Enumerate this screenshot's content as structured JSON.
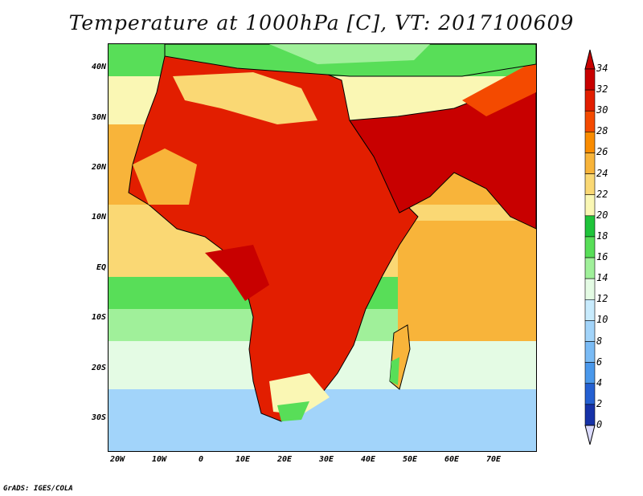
{
  "title": "Temperature at 1000hPa [C], VT: 2017100609",
  "credit": "GrADS: IGES/COLA",
  "lat_labels": [
    "40N",
    "30N",
    "20N",
    "10N",
    "EQ",
    "10S",
    "20S",
    "30S"
  ],
  "lon_labels": [
    "20W",
    "10W",
    "0",
    "10E",
    "20E",
    "30E",
    "40E",
    "50E",
    "60E",
    "70E"
  ],
  "colorbar": {
    "labels": [
      "34",
      "32",
      "30",
      "28",
      "26",
      "24",
      "22",
      "20",
      "18",
      "16",
      "14",
      "12",
      "10",
      "8",
      "6",
      "4",
      "2",
      "0"
    ],
    "colors": [
      "#c80000",
      "#e21e00",
      "#f44a00",
      "#fa8c00",
      "#f8b43a",
      "#fad874",
      "#faf7b4",
      "#1fc43a",
      "#58de58",
      "#a0f09a",
      "#e4fbe4",
      "#c8ebfd",
      "#a2d4fa",
      "#7abbf5",
      "#4a98eb",
      "#2460d2",
      "#1632a8",
      "#070a60"
    ],
    "over_color": "#c80000",
    "under_color": "#dcdcff"
  },
  "colors": {
    "ocean_cool": "#a9dcf8",
    "ocean_warm": "#faa542",
    "land_hot": "#d81a00",
    "coastline": "#000000"
  }
}
